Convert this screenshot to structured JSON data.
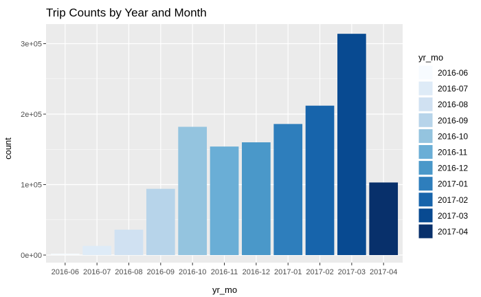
{
  "chart_data": {
    "type": "bar",
    "title": "Trip Counts by Year and Month",
    "xlabel": "yr_mo",
    "ylabel": "count",
    "categories": [
      "2016-06",
      "2016-07",
      "2016-08",
      "2016-09",
      "2016-10",
      "2016-11",
      "2016-12",
      "2017-01",
      "2017-02",
      "2017-03",
      "2017-04"
    ],
    "values": [
      2000,
      13000,
      36000,
      94000,
      182000,
      154000,
      160000,
      186000,
      212000,
      314000,
      103000
    ],
    "ylim": [
      0,
      330000
    ],
    "yticks": [
      0,
      100000,
      200000,
      300000
    ],
    "ytick_labels": [
      "0e+00",
      "1e+05",
      "2e+05",
      "3e+05"
    ],
    "grid": true,
    "legend": {
      "title": "yr_mo",
      "placement": "right",
      "entries": [
        "2016-06",
        "2016-07",
        "2016-08",
        "2016-09",
        "2016-10",
        "2016-11",
        "2016-12",
        "2017-01",
        "2017-02",
        "2017-03",
        "2017-04"
      ]
    },
    "colors": [
      "#f7fbff",
      "#deebf7",
      "#d0e1f2",
      "#b7d4ea",
      "#94c4df",
      "#6aaed6",
      "#4a98c9",
      "#2e7ebc",
      "#1764ab",
      "#084a91",
      "#08306b"
    ],
    "panel_background": "#ebebeb",
    "grid_color": "#ffffff"
  }
}
